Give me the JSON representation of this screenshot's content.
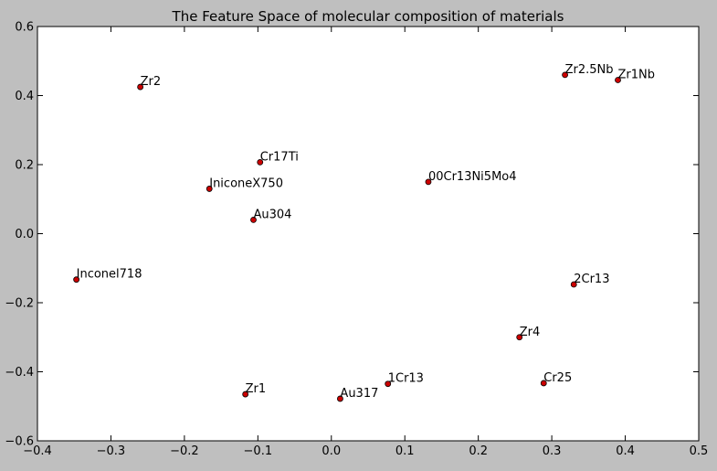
{
  "chart_data": {
    "type": "scatter",
    "title": "The Feature Space of molecular composition of materials",
    "xlabel": "",
    "ylabel": "",
    "xlim": [
      -0.4,
      0.5
    ],
    "ylim": [
      -0.6,
      0.6
    ],
    "xticks": [
      -0.4,
      -0.3,
      -0.2,
      -0.1,
      0.0,
      0.1,
      0.2,
      0.3,
      0.4,
      0.5
    ],
    "yticks": [
      -0.6,
      -0.4,
      -0.2,
      0.0,
      0.2,
      0.4,
      0.6
    ],
    "xtick_labels": [
      "−0.4",
      "−0.3",
      "−0.2",
      "−0.1",
      "0.0",
      "0.1",
      "0.2",
      "0.3",
      "0.4",
      "0.5"
    ],
    "ytick_labels": [
      "−0.6",
      "−0.4",
      "−0.2",
      "0.0",
      "0.2",
      "0.4",
      "0.6"
    ],
    "grid": false,
    "marker_color": "#cc0000",
    "points": [
      {
        "label": "Zr2",
        "x": -0.26,
        "y": 0.425
      },
      {
        "label": "Zr2.5Nb",
        "x": 0.318,
        "y": 0.46
      },
      {
        "label": "Zr1Nb",
        "x": 0.39,
        "y": 0.445
      },
      {
        "label": "Cr17Ti",
        "x": -0.097,
        "y": 0.207
      },
      {
        "label": "IniconeX750",
        "x": -0.166,
        "y": 0.13
      },
      {
        "label": "00Cr13Ni5Mo4",
        "x": 0.132,
        "y": 0.15
      },
      {
        "label": "Au304",
        "x": -0.106,
        "y": 0.04
      },
      {
        "label": "Inconel718",
        "x": -0.347,
        "y": -0.133
      },
      {
        "label": "2Cr13",
        "x": 0.33,
        "y": -0.147
      },
      {
        "label": "Zr4",
        "x": 0.256,
        "y": -0.3
      },
      {
        "label": "1Cr13",
        "x": 0.077,
        "y": -0.435
      },
      {
        "label": "Cr25",
        "x": 0.289,
        "y": -0.433
      },
      {
        "label": "Zr1",
        "x": -0.117,
        "y": -0.465
      },
      {
        "label": "Au317",
        "x": 0.012,
        "y": -0.478
      }
    ]
  }
}
